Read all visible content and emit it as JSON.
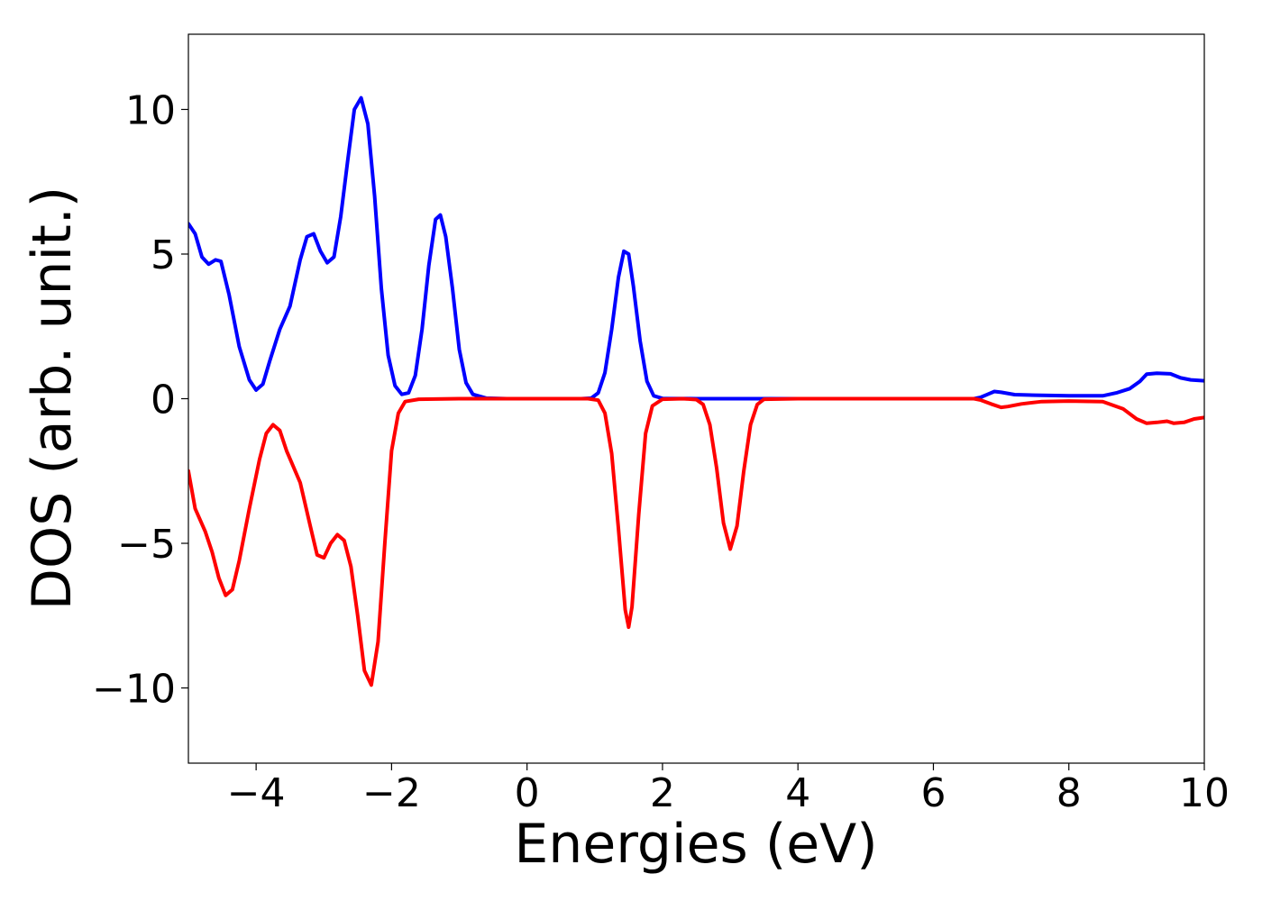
{
  "chart_data": {
    "type": "line",
    "title": "",
    "xlabel": "Energies (eV)",
    "ylabel": "DOS (arb. unit.)",
    "xlim": [
      -5,
      10
    ],
    "ylim": [
      -12.6,
      12.6
    ],
    "grid": false,
    "legend": "none",
    "x_ticks": [
      {
        "value": -4,
        "label": "−4"
      },
      {
        "value": -2,
        "label": "−2"
      },
      {
        "value": 0,
        "label": "0"
      },
      {
        "value": 2,
        "label": "2"
      },
      {
        "value": 4,
        "label": "4"
      },
      {
        "value": 6,
        "label": "6"
      },
      {
        "value": 8,
        "label": "8"
      },
      {
        "value": 10,
        "label": "10"
      }
    ],
    "y_ticks": [
      {
        "value": 10,
        "label": "10"
      },
      {
        "value": 5,
        "label": "5"
      },
      {
        "value": 0,
        "label": "0"
      },
      {
        "value": -5,
        "label": "−5"
      },
      {
        "value": -10,
        "label": "−10"
      }
    ],
    "series": [
      {
        "color": "#0000ff",
        "points": [
          [
            -5.0,
            6.05
          ],
          [
            -4.9,
            5.7
          ],
          [
            -4.8,
            4.9
          ],
          [
            -4.7,
            4.65
          ],
          [
            -4.6,
            4.8
          ],
          [
            -4.52,
            4.75
          ],
          [
            -4.4,
            3.6
          ],
          [
            -4.25,
            1.8
          ],
          [
            -4.1,
            0.65
          ],
          [
            -4.0,
            0.3
          ],
          [
            -3.9,
            0.5
          ],
          [
            -3.8,
            1.3
          ],
          [
            -3.65,
            2.4
          ],
          [
            -3.5,
            3.2
          ],
          [
            -3.35,
            4.8
          ],
          [
            -3.25,
            5.6
          ],
          [
            -3.15,
            5.7
          ],
          [
            -3.05,
            5.1
          ],
          [
            -2.95,
            4.7
          ],
          [
            -2.85,
            4.9
          ],
          [
            -2.75,
            6.3
          ],
          [
            -2.65,
            8.2
          ],
          [
            -2.55,
            10.0
          ],
          [
            -2.45,
            10.4
          ],
          [
            -2.35,
            9.5
          ],
          [
            -2.25,
            7.0
          ],
          [
            -2.15,
            3.8
          ],
          [
            -2.05,
            1.5
          ],
          [
            -1.95,
            0.45
          ],
          [
            -1.85,
            0.15
          ],
          [
            -1.75,
            0.2
          ],
          [
            -1.65,
            0.8
          ],
          [
            -1.55,
            2.4
          ],
          [
            -1.45,
            4.6
          ],
          [
            -1.35,
            6.2
          ],
          [
            -1.28,
            6.35
          ],
          [
            -1.2,
            5.6
          ],
          [
            -1.1,
            3.8
          ],
          [
            -1.0,
            1.7
          ],
          [
            -0.9,
            0.55
          ],
          [
            -0.8,
            0.15
          ],
          [
            -0.6,
            0.02
          ],
          [
            -0.3,
            0.0
          ],
          [
            0.5,
            0.0
          ],
          [
            0.8,
            0.0
          ],
          [
            0.95,
            0.02
          ],
          [
            1.05,
            0.2
          ],
          [
            1.15,
            0.9
          ],
          [
            1.25,
            2.4
          ],
          [
            1.35,
            4.2
          ],
          [
            1.43,
            5.1
          ],
          [
            1.5,
            5.0
          ],
          [
            1.57,
            3.9
          ],
          [
            1.67,
            2.0
          ],
          [
            1.77,
            0.6
          ],
          [
            1.87,
            0.1
          ],
          [
            2.0,
            0.01
          ],
          [
            2.5,
            0.0
          ],
          [
            4.0,
            0.0
          ],
          [
            6.0,
            0.0
          ],
          [
            6.6,
            0.0
          ],
          [
            6.7,
            0.05
          ],
          [
            6.8,
            0.15
          ],
          [
            6.9,
            0.25
          ],
          [
            7.0,
            0.22
          ],
          [
            7.2,
            0.14
          ],
          [
            7.5,
            0.12
          ],
          [
            8.0,
            0.1
          ],
          [
            8.5,
            0.1
          ],
          [
            8.7,
            0.2
          ],
          [
            8.9,
            0.35
          ],
          [
            9.05,
            0.6
          ],
          [
            9.15,
            0.85
          ],
          [
            9.3,
            0.88
          ],
          [
            9.5,
            0.86
          ],
          [
            9.65,
            0.72
          ],
          [
            9.8,
            0.65
          ],
          [
            10.0,
            0.62
          ]
        ]
      },
      {
        "color": "#ff0000",
        "points": [
          [
            -5.0,
            -2.5
          ],
          [
            -4.9,
            -3.8
          ],
          [
            -4.75,
            -4.6
          ],
          [
            -4.65,
            -5.3
          ],
          [
            -4.55,
            -6.2
          ],
          [
            -4.45,
            -6.8
          ],
          [
            -4.35,
            -6.6
          ],
          [
            -4.25,
            -5.6
          ],
          [
            -4.1,
            -3.8
          ],
          [
            -3.95,
            -2.1
          ],
          [
            -3.85,
            -1.2
          ],
          [
            -3.75,
            -0.9
          ],
          [
            -3.65,
            -1.1
          ],
          [
            -3.55,
            -1.8
          ],
          [
            -3.35,
            -2.9
          ],
          [
            -3.2,
            -4.4
          ],
          [
            -3.1,
            -5.4
          ],
          [
            -3.0,
            -5.5
          ],
          [
            -2.9,
            -5.0
          ],
          [
            -2.8,
            -4.7
          ],
          [
            -2.7,
            -4.9
          ],
          [
            -2.6,
            -5.8
          ],
          [
            -2.5,
            -7.5
          ],
          [
            -2.4,
            -9.4
          ],
          [
            -2.3,
            -9.9
          ],
          [
            -2.2,
            -8.4
          ],
          [
            -2.1,
            -5.0
          ],
          [
            -2.0,
            -1.8
          ],
          [
            -1.9,
            -0.5
          ],
          [
            -1.8,
            -0.1
          ],
          [
            -1.6,
            -0.02
          ],
          [
            -1.0,
            0.0
          ],
          [
            0.0,
            0.0
          ],
          [
            0.9,
            0.0
          ],
          [
            1.05,
            -0.05
          ],
          [
            1.15,
            -0.5
          ],
          [
            1.25,
            -1.9
          ],
          [
            1.35,
            -4.5
          ],
          [
            1.45,
            -7.3
          ],
          [
            1.5,
            -7.9
          ],
          [
            1.55,
            -7.2
          ],
          [
            1.65,
            -4.0
          ],
          [
            1.75,
            -1.2
          ],
          [
            1.85,
            -0.25
          ],
          [
            2.0,
            -0.02
          ],
          [
            2.3,
            0.0
          ],
          [
            2.5,
            -0.03
          ],
          [
            2.6,
            -0.2
          ],
          [
            2.7,
            -0.9
          ],
          [
            2.8,
            -2.4
          ],
          [
            2.9,
            -4.3
          ],
          [
            3.0,
            -5.2
          ],
          [
            3.1,
            -4.4
          ],
          [
            3.2,
            -2.5
          ],
          [
            3.3,
            -0.9
          ],
          [
            3.4,
            -0.2
          ],
          [
            3.5,
            -0.02
          ],
          [
            4.0,
            0.0
          ],
          [
            6.0,
            0.0
          ],
          [
            6.6,
            0.0
          ],
          [
            6.7,
            -0.05
          ],
          [
            6.85,
            -0.18
          ],
          [
            7.0,
            -0.3
          ],
          [
            7.1,
            -0.27
          ],
          [
            7.3,
            -0.18
          ],
          [
            7.6,
            -0.1
          ],
          [
            8.0,
            -0.08
          ],
          [
            8.5,
            -0.1
          ],
          [
            8.8,
            -0.35
          ],
          [
            9.0,
            -0.7
          ],
          [
            9.15,
            -0.85
          ],
          [
            9.3,
            -0.82
          ],
          [
            9.45,
            -0.78
          ],
          [
            9.55,
            -0.85
          ],
          [
            9.7,
            -0.82
          ],
          [
            9.85,
            -0.7
          ],
          [
            10.0,
            -0.65
          ]
        ]
      }
    ]
  }
}
